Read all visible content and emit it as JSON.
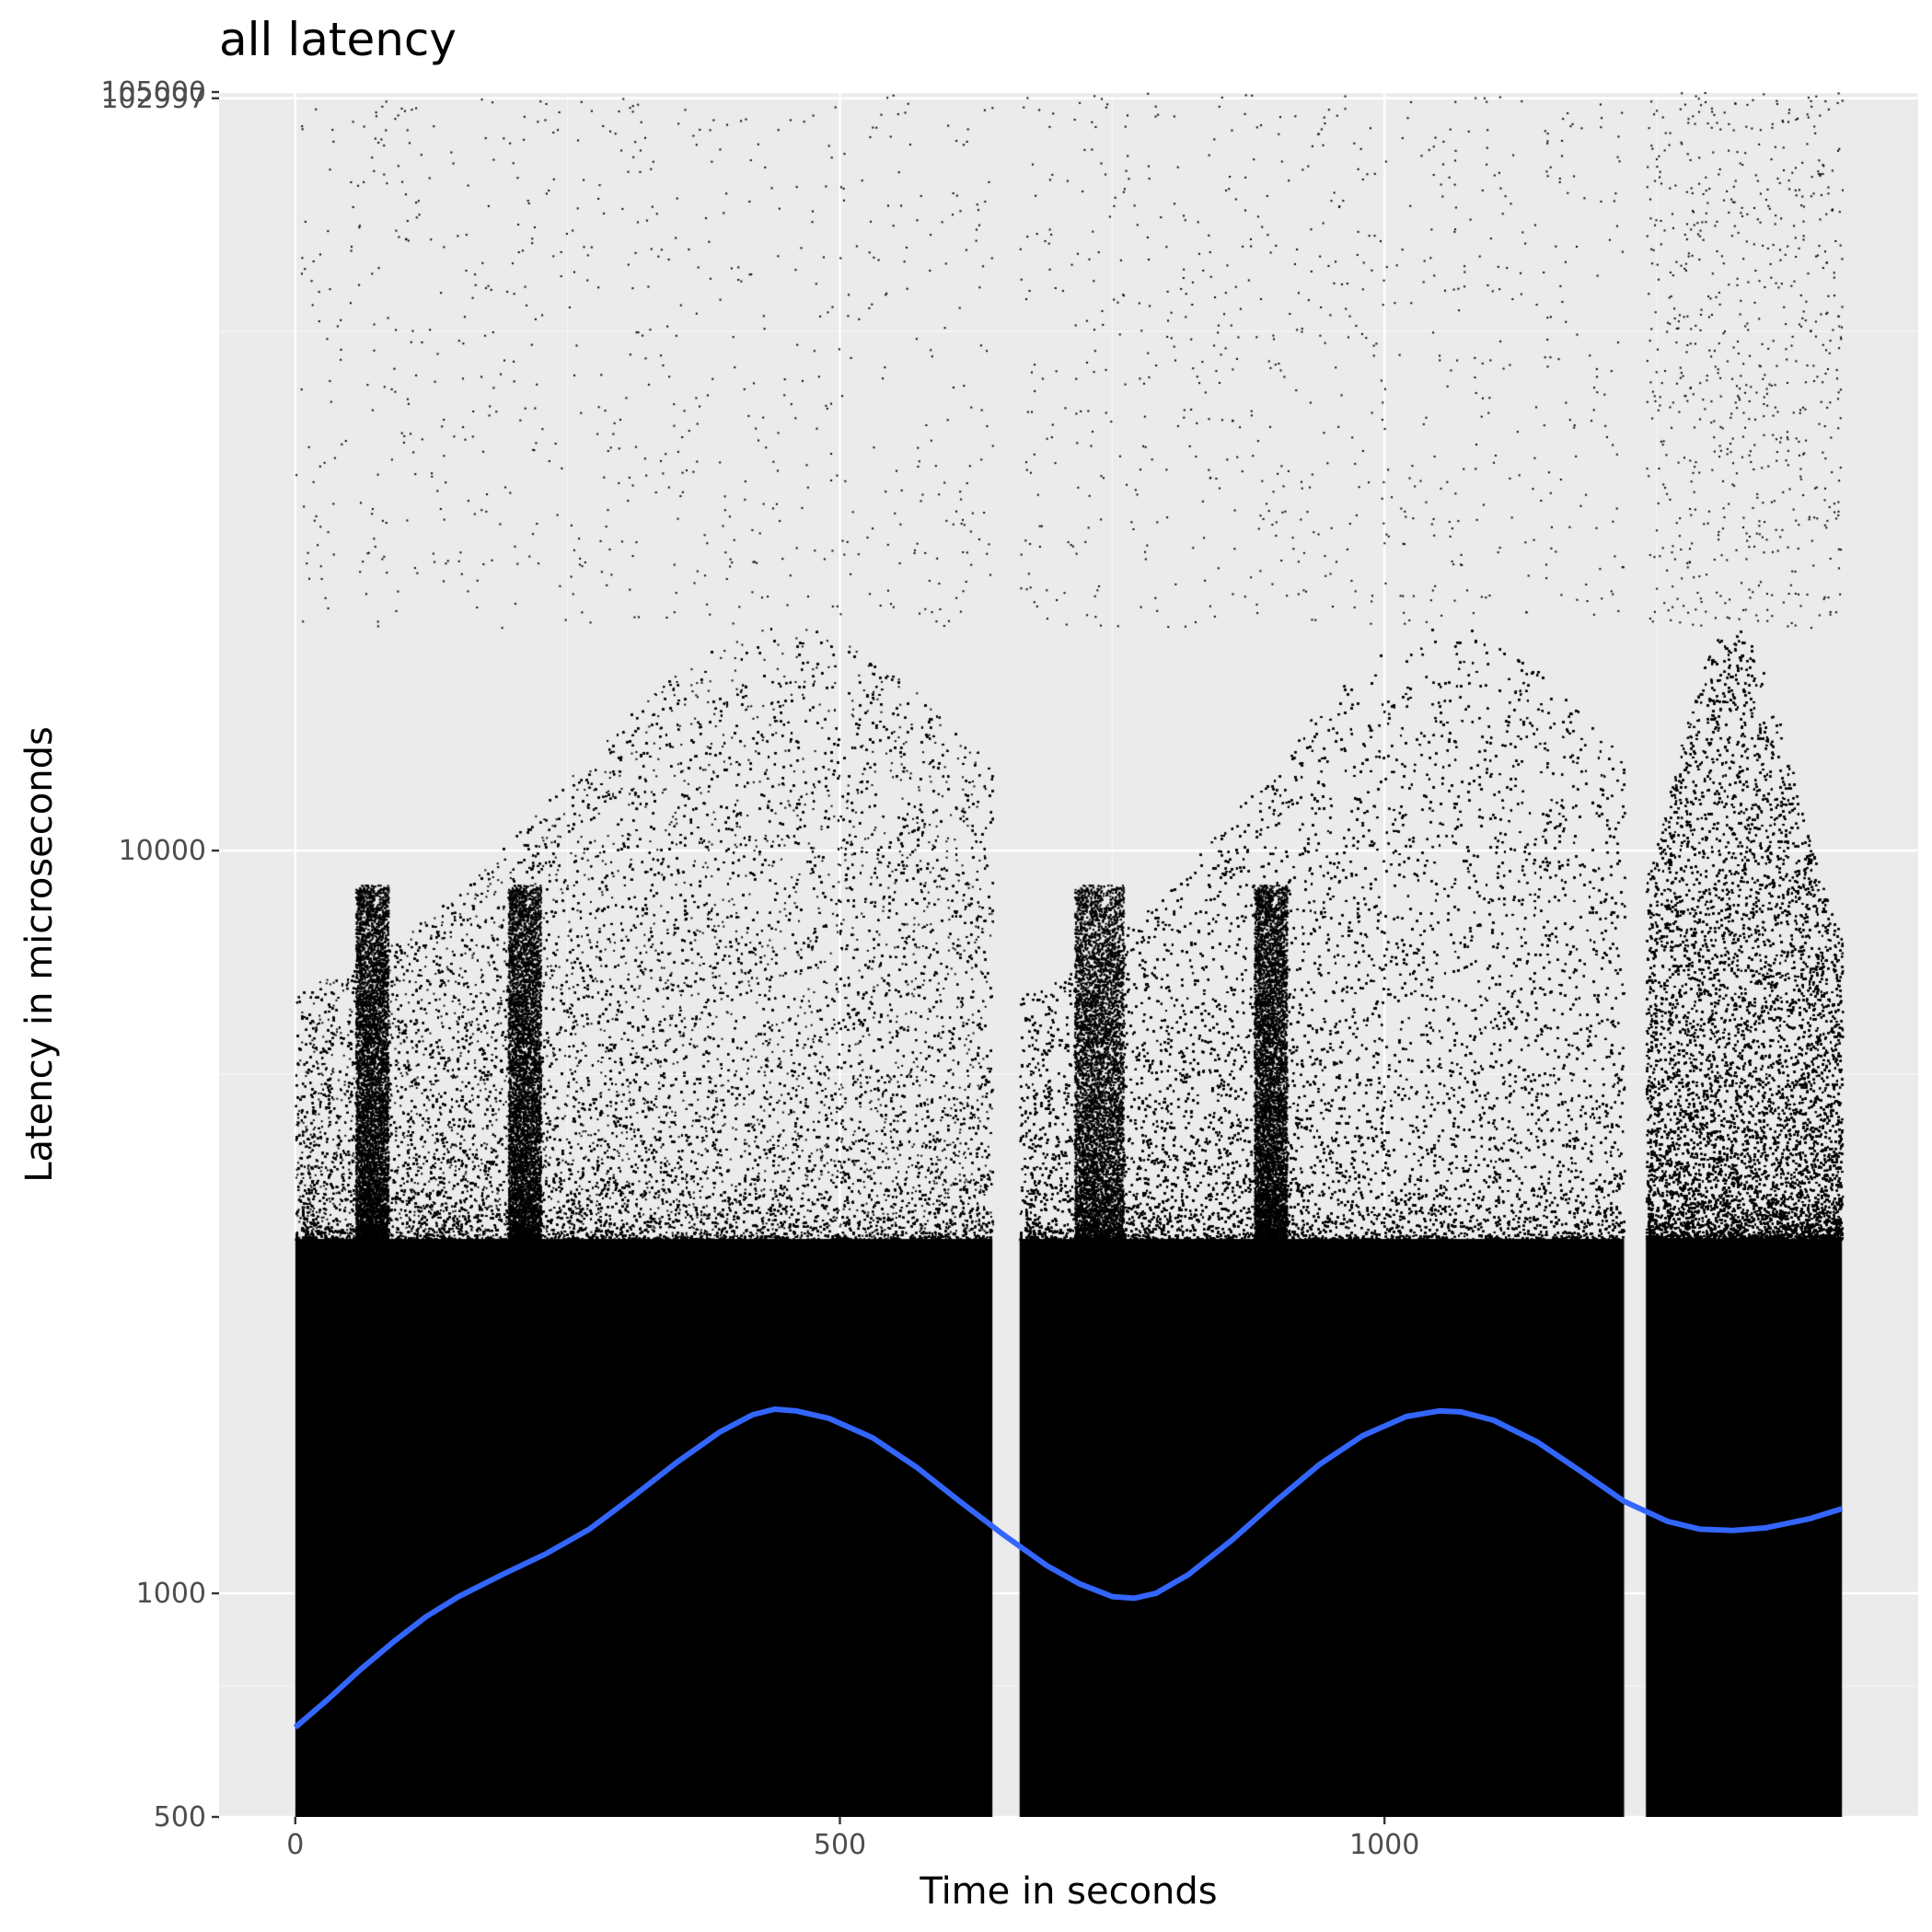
{
  "chart_data": {
    "type": "scatter",
    "title": "all latency",
    "xlabel": "Time in seconds",
    "ylabel": "Latency in microseconds",
    "x_scale": "linear",
    "y_scale": "log10",
    "xlim": [
      -70,
      1490
    ],
    "ylim": [
      500,
      105000
    ],
    "x_ticks": [
      {
        "value": 0,
        "label": "0"
      },
      {
        "value": 500,
        "label": "500"
      },
      {
        "value": 1000,
        "label": "1000"
      }
    ],
    "y_ticks": [
      {
        "value": 500,
        "label": "500"
      },
      {
        "value": 1000,
        "label": "1000"
      },
      {
        "value": 10000,
        "label": "10000"
      },
      {
        "value": 102997,
        "label": "102997"
      },
      {
        "value": 105000,
        "label": "105000"
      }
    ],
    "y_minor_gridlines": [
      750,
      5000,
      50000
    ],
    "x_minor_gridlines": [
      250,
      750,
      1250
    ],
    "grid": true,
    "legend": "none",
    "scatter_series": {
      "name": "",
      "color": "#000000",
      "segments": [
        {
          "x_range": [
            0,
            640
          ],
          "peak_x": 450
        },
        {
          "x_range": [
            665,
            1220
          ],
          "peak_x": 1060
        },
        {
          "x_range": [
            1240,
            1420
          ],
          "peak_x": 1320
        }
      ],
      "bursts": [
        {
          "x_range": [
            55,
            85
          ]
        },
        {
          "x_range": [
            195,
            225
          ]
        },
        {
          "x_range": [
            715,
            760
          ]
        },
        {
          "x_range": [
            880,
            910
          ]
        }
      ],
      "dense_band": [
        500,
        3000
      ],
      "sparse_range": [
        3000,
        20000
      ],
      "outlier_max": 105000
    },
    "smooth_series": {
      "name": "",
      "color": "#3366FF",
      "points": [
        [
          0,
          660
        ],
        [
          30,
          720
        ],
        [
          60,
          790
        ],
        [
          90,
          860
        ],
        [
          120,
          930
        ],
        [
          150,
          990
        ],
        [
          190,
          1060
        ],
        [
          230,
          1130
        ],
        [
          270,
          1220
        ],
        [
          310,
          1350
        ],
        [
          350,
          1500
        ],
        [
          390,
          1650
        ],
        [
          420,
          1740
        ],
        [
          440,
          1770
        ],
        [
          460,
          1760
        ],
        [
          490,
          1720
        ],
        [
          530,
          1620
        ],
        [
          570,
          1480
        ],
        [
          610,
          1330
        ],
        [
          650,
          1200
        ],
        [
          690,
          1090
        ],
        [
          720,
          1030
        ],
        [
          750,
          990
        ],
        [
          770,
          985
        ],
        [
          790,
          1000
        ],
        [
          820,
          1060
        ],
        [
          860,
          1180
        ],
        [
          900,
          1330
        ],
        [
          940,
          1490
        ],
        [
          980,
          1630
        ],
        [
          1020,
          1730
        ],
        [
          1050,
          1760
        ],
        [
          1070,
          1755
        ],
        [
          1100,
          1710
        ],
        [
          1140,
          1600
        ],
        [
          1180,
          1460
        ],
        [
          1220,
          1330
        ],
        [
          1260,
          1250
        ],
        [
          1290,
          1220
        ],
        [
          1320,
          1215
        ],
        [
          1350,
          1225
        ],
        [
          1390,
          1260
        ],
        [
          1420,
          1300
        ]
      ]
    }
  }
}
